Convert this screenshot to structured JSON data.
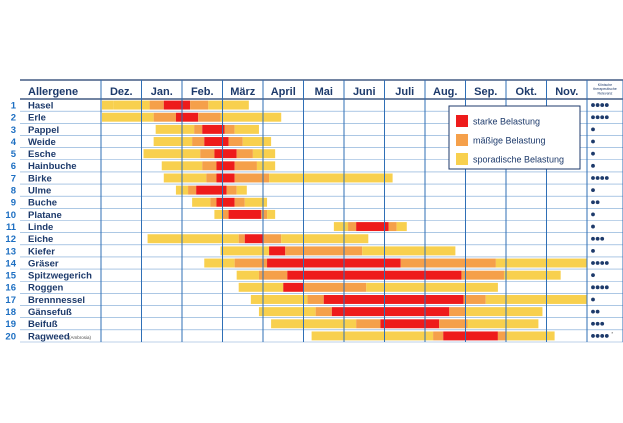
{
  "chart_data": {
    "type": "table",
    "months": [
      "Dez.",
      "Jan.",
      "Feb.",
      "März",
      "April",
      "Mai",
      "Juni",
      "Juli",
      "Aug.",
      "Sep.",
      "Okt.",
      "Nov."
    ],
    "header_label": "Allergene",
    "relevance_header": [
      "Klinische",
      "therapeutische",
      "Relevanz"
    ],
    "legend": [
      {
        "key": "strong",
        "label": "starke Belastung",
        "color": "#ee1b1b"
      },
      {
        "key": "moderate",
        "label": "mäßige Belastung",
        "color": "#f5a04a"
      },
      {
        "key": "sporadic",
        "label": "sporadische Belastung",
        "color": "#f8d04e"
      }
    ],
    "rows": [
      {
        "num": "1",
        "name": "Hasel",
        "sub": "",
        "relevance": 4,
        "mark": "",
        "segments": [
          [
            -0.1,
            0.3,
            "sporadic"
          ],
          [
            0.3,
            1.2,
            "sporadic"
          ],
          [
            1.2,
            1.55,
            "moderate"
          ],
          [
            1.55,
            2.2,
            "strong"
          ],
          [
            2.2,
            2.65,
            "moderate"
          ],
          [
            2.65,
            3.65,
            "sporadic"
          ]
        ]
      },
      {
        "num": "2",
        "name": "Erle",
        "sub": "",
        "relevance": 4,
        "mark": "",
        "segments": [
          [
            -0.15,
            1.3,
            "sporadic"
          ],
          [
            1.3,
            1.85,
            "moderate"
          ],
          [
            1.85,
            2.4,
            "strong"
          ],
          [
            2.4,
            2.95,
            "moderate"
          ],
          [
            2.95,
            4.45,
            "sporadic"
          ]
        ]
      },
      {
        "num": "3",
        "name": "Pappel",
        "sub": "",
        "relevance": 1,
        "mark": "",
        "segments": [
          [
            1.35,
            2.3,
            "sporadic"
          ],
          [
            2.3,
            2.5,
            "moderate"
          ],
          [
            2.5,
            3.05,
            "strong"
          ],
          [
            3.05,
            3.3,
            "moderate"
          ],
          [
            3.3,
            3.9,
            "sporadic"
          ]
        ]
      },
      {
        "num": "4",
        "name": "Weide",
        "sub": "",
        "relevance": 1,
        "mark": "",
        "segments": [
          [
            1.3,
            2.25,
            "sporadic"
          ],
          [
            2.25,
            2.55,
            "moderate"
          ],
          [
            2.55,
            3.15,
            "strong"
          ],
          [
            3.15,
            3.5,
            "moderate"
          ],
          [
            3.5,
            4.2,
            "sporadic"
          ]
        ]
      },
      {
        "num": "5",
        "name": "Esche",
        "sub": "",
        "relevance": 1,
        "mark": "",
        "segments": [
          [
            1.05,
            2.45,
            "sporadic"
          ],
          [
            2.45,
            2.8,
            "moderate"
          ],
          [
            2.8,
            3.35,
            "strong"
          ],
          [
            3.35,
            3.75,
            "moderate"
          ],
          [
            3.75,
            4.3,
            "sporadic"
          ]
        ]
      },
      {
        "num": "6",
        "name": "Hainbuche",
        "sub": "",
        "relevance": 1,
        "mark": "",
        "segments": [
          [
            1.5,
            2.5,
            "sporadic"
          ],
          [
            2.5,
            2.85,
            "moderate"
          ],
          [
            2.85,
            3.3,
            "strong"
          ],
          [
            3.3,
            3.85,
            "moderate"
          ],
          [
            3.85,
            4.3,
            "sporadic"
          ]
        ]
      },
      {
        "num": "7",
        "name": "Birke",
        "sub": "",
        "relevance": 4,
        "mark": "",
        "segments": [
          [
            1.55,
            2.6,
            "sporadic"
          ],
          [
            2.6,
            2.85,
            "moderate"
          ],
          [
            2.85,
            3.3,
            "strong"
          ],
          [
            3.3,
            4.15,
            "moderate"
          ],
          [
            4.15,
            7.2,
            "sporadic"
          ]
        ]
      },
      {
        "num": "8",
        "name": "Ulme",
        "sub": "",
        "relevance": 1,
        "mark": "",
        "segments": [
          [
            1.85,
            2.15,
            "sporadic"
          ],
          [
            2.15,
            2.35,
            "moderate"
          ],
          [
            2.35,
            3.1,
            "strong"
          ],
          [
            3.1,
            3.35,
            "moderate"
          ],
          [
            3.35,
            3.6,
            "sporadic"
          ]
        ]
      },
      {
        "num": "9",
        "name": "Buche",
        "sub": "",
        "relevance": 2,
        "mark": "",
        "segments": [
          [
            2.25,
            2.7,
            "sporadic"
          ],
          [
            2.7,
            2.85,
            "moderate"
          ],
          [
            2.85,
            3.3,
            "strong"
          ],
          [
            3.3,
            3.55,
            "moderate"
          ],
          [
            3.55,
            4.1,
            "sporadic"
          ]
        ]
      },
      {
        "num": "10",
        "name": "Platane",
        "sub": "",
        "relevance": 1,
        "mark": "",
        "segments": [
          [
            2.8,
            3.0,
            "sporadic"
          ],
          [
            3.0,
            3.15,
            "moderate"
          ],
          [
            3.15,
            3.95,
            "strong"
          ],
          [
            3.95,
            4.1,
            "moderate"
          ],
          [
            4.1,
            4.3,
            "sporadic"
          ]
        ]
      },
      {
        "num": "11",
        "name": "Linde",
        "sub": "",
        "relevance": 1,
        "mark": "",
        "segments": [
          [
            5.75,
            6.1,
            "sporadic"
          ],
          [
            6.1,
            6.3,
            "moderate"
          ],
          [
            6.3,
            7.1,
            "strong"
          ],
          [
            7.1,
            7.3,
            "moderate"
          ],
          [
            7.3,
            7.55,
            "sporadic"
          ]
        ]
      },
      {
        "num": "12",
        "name": "Eiche",
        "sub": "",
        "relevance": 3,
        "mark": "",
        "segments": [
          [
            1.15,
            3.4,
            "sporadic"
          ],
          [
            3.4,
            3.55,
            "moderate"
          ],
          [
            3.55,
            4.0,
            "strong"
          ],
          [
            4.0,
            4.45,
            "moderate"
          ],
          [
            4.45,
            6.6,
            "sporadic"
          ]
        ]
      },
      {
        "num": "13",
        "name": "Kiefer",
        "sub": "",
        "relevance": 1,
        "mark": "",
        "segments": [
          [
            2.95,
            4.15,
            "sporadic"
          ],
          [
            4.15,
            4.55,
            "strong"
          ],
          [
            4.55,
            6.45,
            "moderate"
          ],
          [
            6.45,
            8.75,
            "sporadic"
          ]
        ]
      },
      {
        "num": "14",
        "name": "Gräser",
        "sub": "",
        "relevance": 4,
        "mark": "",
        "segments": [
          [
            2.55,
            3.3,
            "sporadic"
          ],
          [
            3.3,
            4.1,
            "moderate"
          ],
          [
            4.1,
            7.4,
            "strong"
          ],
          [
            7.4,
            9.75,
            "moderate"
          ],
          [
            9.75,
            12.3,
            "sporadic"
          ]
        ]
      },
      {
        "num": "15",
        "name": "Spitzwegerich",
        "sub": "",
        "relevance": 1,
        "mark": "",
        "segments": [
          [
            3.35,
            3.9,
            "sporadic"
          ],
          [
            3.9,
            4.6,
            "moderate"
          ],
          [
            4.6,
            8.9,
            "strong"
          ],
          [
            8.9,
            9.95,
            "moderate"
          ],
          [
            9.95,
            11.35,
            "sporadic"
          ]
        ]
      },
      {
        "num": "16",
        "name": "Roggen",
        "sub": "",
        "relevance": 4,
        "mark": "",
        "segments": [
          [
            3.4,
            4.5,
            "sporadic"
          ],
          [
            4.5,
            5.0,
            "strong"
          ],
          [
            5.0,
            6.55,
            "moderate"
          ],
          [
            6.55,
            9.8,
            "sporadic"
          ]
        ]
      },
      {
        "num": "17",
        "name": "Brennnessel",
        "sub": "",
        "relevance": 1,
        "mark": "",
        "segments": [
          [
            3.7,
            5.1,
            "sporadic"
          ],
          [
            5.1,
            5.5,
            "moderate"
          ],
          [
            5.5,
            8.95,
            "strong"
          ],
          [
            8.95,
            9.5,
            "moderate"
          ],
          [
            9.5,
            12.3,
            "sporadic"
          ]
        ]
      },
      {
        "num": "18",
        "name": "Gänsefuß",
        "sub": "",
        "relevance": 2,
        "mark": "",
        "segments": [
          [
            3.9,
            5.3,
            "sporadic"
          ],
          [
            5.3,
            5.7,
            "moderate"
          ],
          [
            5.7,
            8.6,
            "strong"
          ],
          [
            8.6,
            9.0,
            "moderate"
          ],
          [
            9.0,
            10.9,
            "sporadic"
          ]
        ]
      },
      {
        "num": "19",
        "name": "Beifuß",
        "sub": "",
        "relevance": 3,
        "mark": "",
        "segments": [
          [
            4.2,
            6.3,
            "sporadic"
          ],
          [
            6.3,
            6.9,
            "moderate"
          ],
          [
            6.9,
            8.35,
            "strong"
          ],
          [
            8.35,
            9.05,
            "moderate"
          ],
          [
            9.05,
            10.8,
            "sporadic"
          ]
        ]
      },
      {
        "num": "20",
        "name": "Ragweed",
        "sub": "(Ambrosia)",
        "relevance": 4,
        "mark": "*",
        "segments": [
          [
            5.2,
            8.2,
            "sporadic"
          ],
          [
            8.2,
            8.45,
            "moderate"
          ],
          [
            8.45,
            9.8,
            "strong"
          ],
          [
            9.8,
            10.0,
            "moderate"
          ],
          [
            10.0,
            11.2,
            "sporadic"
          ]
        ]
      }
    ]
  }
}
